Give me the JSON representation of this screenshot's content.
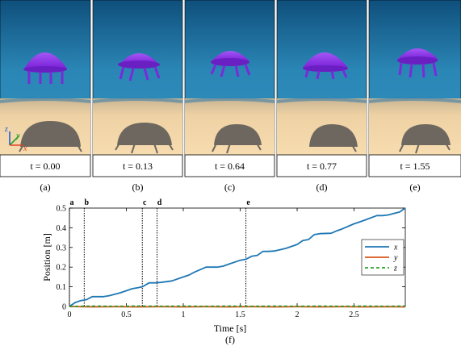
{
  "panels": [
    {
      "label": "(a)",
      "time": "t = 0.00"
    },
    {
      "label": "(b)",
      "time": "t = 0.13"
    },
    {
      "label": "(c)",
      "time": "t = 0.64"
    },
    {
      "label": "(d)",
      "time": "t = 0.77"
    },
    {
      "label": "(e)",
      "time": "t = 1.55"
    }
  ],
  "axes_triad": {
    "z": "z",
    "y": "y",
    "x": "x"
  },
  "colors": {
    "water_top": "#0f4f7c",
    "water_mid": "#2a86b5",
    "sand": "#f3d5a5",
    "robot": "#8e35e8",
    "shadow": "#6e675f"
  },
  "chart_data": {
    "type": "line",
    "panel_label": "(f)",
    "xlabel": "Time [s]",
    "ylabel": "Position [m]",
    "xlim": [
      0,
      2.95
    ],
    "ylim": [
      0,
      0.5
    ],
    "xticks": [
      "0",
      "0.5",
      "1",
      "1.5",
      "2",
      "2.5"
    ],
    "yticks": [
      "0",
      "0.1",
      "0.2",
      "0.3",
      "0.4",
      "0.5"
    ],
    "grid": false,
    "legend_position": "right",
    "events": [
      {
        "label": "a",
        "t": 0.0
      },
      {
        "label": "b",
        "t": 0.13
      },
      {
        "label": "c",
        "t": 0.64
      },
      {
        "label": "d",
        "t": 0.77
      },
      {
        "label": "e",
        "t": 1.55
      }
    ],
    "series": [
      {
        "name": "x",
        "color": "#1f77b4",
        "dash": "solid",
        "x": [
          0,
          0.05,
          0.1,
          0.15,
          0.2,
          0.3,
          0.35,
          0.45,
          0.55,
          0.6,
          0.64,
          0.7,
          0.75,
          0.8,
          0.9,
          1.0,
          1.05,
          1.1,
          1.2,
          1.3,
          1.35,
          1.4,
          1.5,
          1.55,
          1.6,
          1.65,
          1.7,
          1.75,
          1.8,
          1.9,
          2.0,
          2.05,
          2.1,
          2.15,
          2.2,
          2.3,
          2.35,
          2.4,
          2.5,
          2.55,
          2.6,
          2.7,
          2.75,
          2.8,
          2.9,
          2.95
        ],
        "y": [
          0.0,
          0.02,
          0.03,
          0.035,
          0.05,
          0.05,
          0.055,
          0.07,
          0.09,
          0.095,
          0.1,
          0.12,
          0.12,
          0.122,
          0.13,
          0.15,
          0.16,
          0.175,
          0.2,
          0.2,
          0.205,
          0.215,
          0.235,
          0.24,
          0.255,
          0.26,
          0.28,
          0.28,
          0.282,
          0.295,
          0.315,
          0.335,
          0.34,
          0.365,
          0.37,
          0.372,
          0.385,
          0.395,
          0.42,
          0.43,
          0.44,
          0.462,
          0.462,
          0.465,
          0.48,
          0.5
        ]
      },
      {
        "name": "y",
        "color": "#d9541a",
        "dash": "solid",
        "x": [
          0,
          0.2,
          0.4,
          0.6,
          0.8,
          1.0,
          1.2,
          1.4,
          1.6,
          1.8,
          2.0,
          2.2,
          2.4,
          2.6,
          2.8,
          2.95
        ],
        "y": [
          0,
          -0.002,
          -0.001,
          -0.002,
          -0.001,
          -0.002,
          -0.001,
          -0.002,
          -0.001,
          -0.002,
          -0.001,
          -0.002,
          -0.001,
          -0.002,
          -0.001,
          -0.002
        ]
      },
      {
        "name": "z",
        "color": "#2ca02c",
        "dash": "dashed",
        "x": [
          0,
          0.2,
          0.4,
          0.6,
          0.8,
          1.0,
          1.2,
          1.4,
          1.6,
          1.8,
          2.0,
          2.2,
          2.4,
          2.6,
          2.8,
          2.95
        ],
        "y": [
          0,
          0.002,
          0.001,
          0.002,
          0.001,
          0.002,
          0.001,
          0.002,
          0.001,
          0.002,
          0.001,
          0.002,
          0.001,
          0.002,
          0.001,
          0.002
        ]
      }
    ]
  }
}
